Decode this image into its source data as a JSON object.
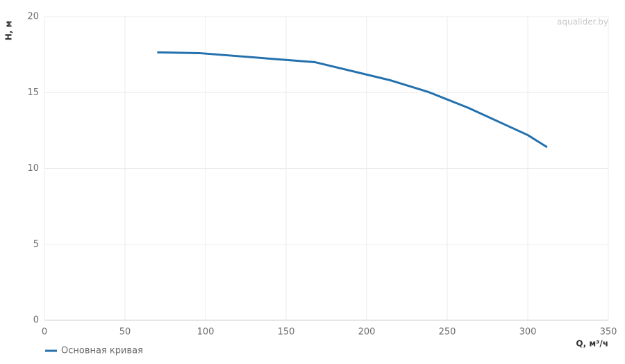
{
  "chart_data": {
    "type": "line",
    "x_label": "Q, м³/ч",
    "y_label": "H, м",
    "watermark": "aqualider.by",
    "series": [
      {
        "name": "Основная кривая",
        "color": "#2471ad",
        "x": [
          70,
          96,
          168,
          215,
          238,
          263,
          300,
          312
        ],
        "values": [
          17.65,
          17.6,
          17.0,
          15.8,
          15.05,
          14.0,
          12.2,
          11.4
        ]
      }
    ],
    "xlim": [
      0,
      350
    ],
    "xticks": [
      0,
      50,
      100,
      150,
      200,
      250,
      300,
      350
    ],
    "ylim": [
      0,
      20
    ],
    "yticks": [
      0,
      5,
      10,
      15,
      20
    ],
    "grid": true
  }
}
